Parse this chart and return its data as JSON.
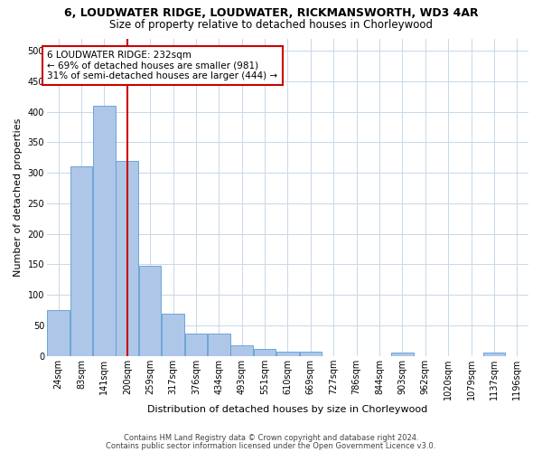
{
  "title": "6, LOUDWATER RIDGE, LOUDWATER, RICKMANSWORTH, WD3 4AR",
  "subtitle": "Size of property relative to detached houses in Chorleywood",
  "xlabel": "Distribution of detached houses by size in Chorleywood",
  "ylabel": "Number of detached properties",
  "footnote1": "Contains HM Land Registry data © Crown copyright and database right 2024.",
  "footnote2": "Contains public sector information licensed under the Open Government Licence v3.0.",
  "bin_labels": [
    "24sqm",
    "83sqm",
    "141sqm",
    "200sqm",
    "259sqm",
    "317sqm",
    "376sqm",
    "434sqm",
    "493sqm",
    "551sqm",
    "610sqm",
    "669sqm",
    "727sqm",
    "786sqm",
    "844sqm",
    "903sqm",
    "962sqm",
    "1020sqm",
    "1079sqm",
    "1137sqm",
    "1196sqm"
  ],
  "bar_values": [
    75,
    310,
    410,
    320,
    148,
    70,
    37,
    37,
    18,
    12,
    7,
    7,
    0,
    0,
    0,
    5,
    0,
    0,
    0,
    5,
    0
  ],
  "bar_color": "#aec7e8",
  "bar_edge_color": "#5b9bd5",
  "vline_bin_index": 3,
  "vline_label": "232sqm",
  "vline_color": "#cc0000",
  "ylim": [
    0,
    520
  ],
  "yticks": [
    0,
    50,
    100,
    150,
    200,
    250,
    300,
    350,
    400,
    450,
    500
  ],
  "annotation_title": "6 LOUDWATER RIDGE: 232sqm",
  "annotation_line1": "← 69% of detached houses are smaller (981)",
  "annotation_line2": "31% of semi-detached houses are larger (444) →",
  "annotation_box_color": "#ffffff",
  "annotation_box_edge": "#cc0000",
  "bg_color": "#ffffff",
  "grid_color": "#c8d8e8",
  "title_fontsize": 9,
  "subtitle_fontsize": 8.5,
  "axis_label_fontsize": 8,
  "tick_fontsize": 7,
  "annotation_fontsize": 7.5,
  "footnote_fontsize": 6,
  "bin_width": 59
}
